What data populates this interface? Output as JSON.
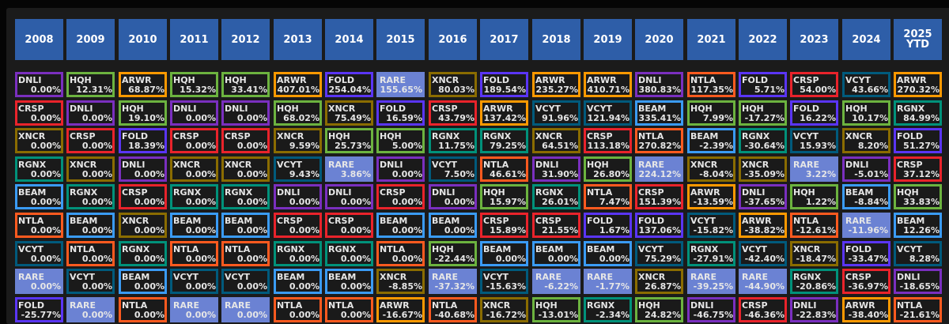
{
  "colors": {
    "DNLI": "#7a2fbf",
    "HQH": "#6cb33f",
    "ARWR": "#ff9900",
    "CRSP": "#e9232b",
    "XNCR": "#8a6c00",
    "FOLD": "#5a35f5",
    "RGNX": "#00917a",
    "BEAM": "#3a9bf5",
    "NTLA": "#ff5a1f",
    "VCYT": "#005a7c",
    "RARE_fill": "#6b82d3",
    "header": "#2e5ea8"
  },
  "columns": [
    {
      "year": "2008",
      "cells": [
        [
          "DNLI",
          "0.00%"
        ],
        [
          "CRSP",
          "0.00%"
        ],
        [
          "XNCR",
          "0.00%"
        ],
        [
          "RGNX",
          "0.00%"
        ],
        [
          "BEAM",
          "0.00%"
        ],
        [
          "NTLA",
          "0.00%"
        ],
        [
          "VCYT",
          "0.00%"
        ],
        [
          "RARE",
          "0.00%"
        ],
        [
          "FOLD",
          "-25.77%"
        ]
      ]
    },
    {
      "year": "2009",
      "cells": [
        [
          "HQH",
          "12.31%"
        ],
        [
          "DNLI",
          "0.00%"
        ],
        [
          "CRSP",
          "0.00%"
        ],
        [
          "XNCR",
          "0.00%"
        ],
        [
          "RGNX",
          "0.00%"
        ],
        [
          "BEAM",
          "0.00%"
        ],
        [
          "NTLA",
          "0.00%"
        ],
        [
          "VCYT",
          "0.00%"
        ],
        [
          "RARE",
          "0.00%"
        ]
      ]
    },
    {
      "year": "2010",
      "cells": [
        [
          "ARWR",
          "68.87%"
        ],
        [
          "HQH",
          "19.10%"
        ],
        [
          "FOLD",
          "18.39%"
        ],
        [
          "DNLI",
          "0.00%"
        ],
        [
          "CRSP",
          "0.00%"
        ],
        [
          "XNCR",
          "0.00%"
        ],
        [
          "RGNX",
          "0.00%"
        ],
        [
          "BEAM",
          "0.00%"
        ],
        [
          "NTLA",
          "0.00%"
        ]
      ]
    },
    {
      "year": "2011",
      "cells": [
        [
          "HQH",
          "15.32%"
        ],
        [
          "DNLI",
          "0.00%"
        ],
        [
          "CRSP",
          "0.00%"
        ],
        [
          "XNCR",
          "0.00%"
        ],
        [
          "RGNX",
          "0.00%"
        ],
        [
          "BEAM",
          "0.00%"
        ],
        [
          "NTLA",
          "0.00%"
        ],
        [
          "VCYT",
          "0.00%"
        ],
        [
          "RARE",
          "0.00%"
        ]
      ]
    },
    {
      "year": "2012",
      "cells": [
        [
          "HQH",
          "33.41%"
        ],
        [
          "DNLI",
          "0.00%"
        ],
        [
          "CRSP",
          "0.00%"
        ],
        [
          "XNCR",
          "0.00%"
        ],
        [
          "RGNX",
          "0.00%"
        ],
        [
          "BEAM",
          "0.00%"
        ],
        [
          "NTLA",
          "0.00%"
        ],
        [
          "VCYT",
          "0.00%"
        ],
        [
          "RARE",
          "0.00%"
        ]
      ]
    },
    {
      "year": "2013",
      "cells": [
        [
          "ARWR",
          "407.01%"
        ],
        [
          "HQH",
          "68.02%"
        ],
        [
          "XNCR",
          "9.59%"
        ],
        [
          "VCYT",
          "9.43%"
        ],
        [
          "DNLI",
          "0.00%"
        ],
        [
          "CRSP",
          "0.00%"
        ],
        [
          "RGNX",
          "0.00%"
        ],
        [
          "BEAM",
          "0.00%"
        ],
        [
          "NTLA",
          "0.00%"
        ]
      ]
    },
    {
      "year": "2014",
      "cells": [
        [
          "FOLD",
          "254.04%"
        ],
        [
          "XNCR",
          "75.49%"
        ],
        [
          "HQH",
          "25.73%"
        ],
        [
          "RARE",
          "3.86%"
        ],
        [
          "DNLI",
          "0.00%"
        ],
        [
          "CRSP",
          "0.00%"
        ],
        [
          "RGNX",
          "0.00%"
        ],
        [
          "BEAM",
          "0.00%"
        ],
        [
          "NTLA",
          "0.00%"
        ]
      ]
    },
    {
      "year": "2015",
      "cells": [
        [
          "RARE",
          "155.65%"
        ],
        [
          "FOLD",
          "16.59%"
        ],
        [
          "HQH",
          "5.00%"
        ],
        [
          "DNLI",
          "0.00%"
        ],
        [
          "CRSP",
          "0.00%"
        ],
        [
          "BEAM",
          "0.00%"
        ],
        [
          "NTLA",
          "0.00%"
        ],
        [
          "XNCR",
          "-8.85%"
        ],
        [
          "ARWR",
          "-16.67%"
        ]
      ]
    },
    {
      "year": "2016",
      "cells": [
        [
          "XNCR",
          "80.03%"
        ],
        [
          "CRSP",
          "43.79%"
        ],
        [
          "RGNX",
          "11.75%"
        ],
        [
          "VCYT",
          "7.50%"
        ],
        [
          "DNLI",
          "0.00%"
        ],
        [
          "BEAM",
          "0.00%"
        ],
        [
          "HQH",
          "-22.44%"
        ],
        [
          "RARE",
          "-37.32%"
        ],
        [
          "NTLA",
          "-40.68%"
        ]
      ]
    },
    {
      "year": "2017",
      "cells": [
        [
          "FOLD",
          "189.54%"
        ],
        [
          "ARWR",
          "137.42%"
        ],
        [
          "RGNX",
          "79.25%"
        ],
        [
          "NTLA",
          "46.61%"
        ],
        [
          "HQH",
          "15.97%"
        ],
        [
          "CRSP",
          "15.89%"
        ],
        [
          "BEAM",
          "0.00%"
        ],
        [
          "VCYT",
          "-15.63%"
        ],
        [
          "XNCR",
          "-16.72%"
        ]
      ]
    },
    {
      "year": "2018",
      "cells": [
        [
          "ARWR",
          "235.27%"
        ],
        [
          "VCYT",
          "91.96%"
        ],
        [
          "XNCR",
          "64.51%"
        ],
        [
          "DNLI",
          "31.90%"
        ],
        [
          "RGNX",
          "26.01%"
        ],
        [
          "CRSP",
          "21.55%"
        ],
        [
          "BEAM",
          "0.00%"
        ],
        [
          "RARE",
          "-6.22%"
        ],
        [
          "HQH",
          "-13.01%"
        ]
      ]
    },
    {
      "year": "2019",
      "cells": [
        [
          "ARWR",
          "410.71%"
        ],
        [
          "VCYT",
          "121.94%"
        ],
        [
          "CRSP",
          "113.18%"
        ],
        [
          "HQH",
          "26.80%"
        ],
        [
          "NTLA",
          "7.47%"
        ],
        [
          "FOLD",
          "1.67%"
        ],
        [
          "BEAM",
          "0.00%"
        ],
        [
          "RARE",
          "-1.77%"
        ],
        [
          "RGNX",
          "-2.34%"
        ]
      ]
    },
    {
      "year": "2020",
      "cells": [
        [
          "DNLI",
          "380.83%"
        ],
        [
          "BEAM",
          "335.41%"
        ],
        [
          "NTLA",
          "270.82%"
        ],
        [
          "RARE",
          "224.12%"
        ],
        [
          "CRSP",
          "151.39%"
        ],
        [
          "FOLD",
          "137.06%"
        ],
        [
          "VCYT",
          "75.29%"
        ],
        [
          "XNCR",
          "26.87%"
        ],
        [
          "HQH",
          "24.82%"
        ]
      ]
    },
    {
      "year": "2021",
      "cells": [
        [
          "NTLA",
          "117.35%"
        ],
        [
          "HQH",
          "7.99%"
        ],
        [
          "BEAM",
          "-2.39%"
        ],
        [
          "XNCR",
          "-8.04%"
        ],
        [
          "ARWR",
          "-13.59%"
        ],
        [
          "VCYT",
          "-15.82%"
        ],
        [
          "RGNX",
          "-27.91%"
        ],
        [
          "RARE",
          "-39.25%"
        ],
        [
          "DNLI",
          "-46.75%"
        ]
      ]
    },
    {
      "year": "2022",
      "cells": [
        [
          "FOLD",
          "5.71%"
        ],
        [
          "HQH",
          "-17.27%"
        ],
        [
          "RGNX",
          "-30.64%"
        ],
        [
          "XNCR",
          "-35.09%"
        ],
        [
          "DNLI",
          "-37.65%"
        ],
        [
          "ARWR",
          "-38.82%"
        ],
        [
          "VCYT",
          "-42.40%"
        ],
        [
          "RARE",
          "-44.90%"
        ],
        [
          "CRSP",
          "-46.36%"
        ]
      ]
    },
    {
      "year": "2023",
      "cells": [
        [
          "CRSP",
          "54.00%"
        ],
        [
          "FOLD",
          "16.22%"
        ],
        [
          "VCYT",
          "15.93%"
        ],
        [
          "RARE",
          "3.22%"
        ],
        [
          "HQH",
          "1.22%"
        ],
        [
          "NTLA",
          "-12.61%"
        ],
        [
          "XNCR",
          "-18.47%"
        ],
        [
          "RGNX",
          "-20.86%"
        ],
        [
          "DNLI",
          "-22.83%"
        ]
      ]
    },
    {
      "year": "2024",
      "cells": [
        [
          "VCYT",
          "43.66%"
        ],
        [
          "HQH",
          "10.17%"
        ],
        [
          "XNCR",
          "8.20%"
        ],
        [
          "DNLI",
          "-5.01%"
        ],
        [
          "BEAM",
          "-8.84%"
        ],
        [
          "RARE",
          "-11.96%"
        ],
        [
          "FOLD",
          "-33.47%"
        ],
        [
          "CRSP",
          "-36.97%"
        ],
        [
          "ARWR",
          "-38.40%"
        ]
      ]
    },
    {
      "year": "2025 YTD",
      "cells": [
        [
          "ARWR",
          "270.32%"
        ],
        [
          "RGNX",
          "84.99%"
        ],
        [
          "FOLD",
          "51.27%"
        ],
        [
          "CRSP",
          "37.12%"
        ],
        [
          "HQH",
          "33.83%"
        ],
        [
          "BEAM",
          "12.26%"
        ],
        [
          "VCYT",
          "8.28%"
        ],
        [
          "DNLI",
          "-18.65%"
        ],
        [
          "NTLA",
          "-21.61%"
        ]
      ]
    }
  ]
}
